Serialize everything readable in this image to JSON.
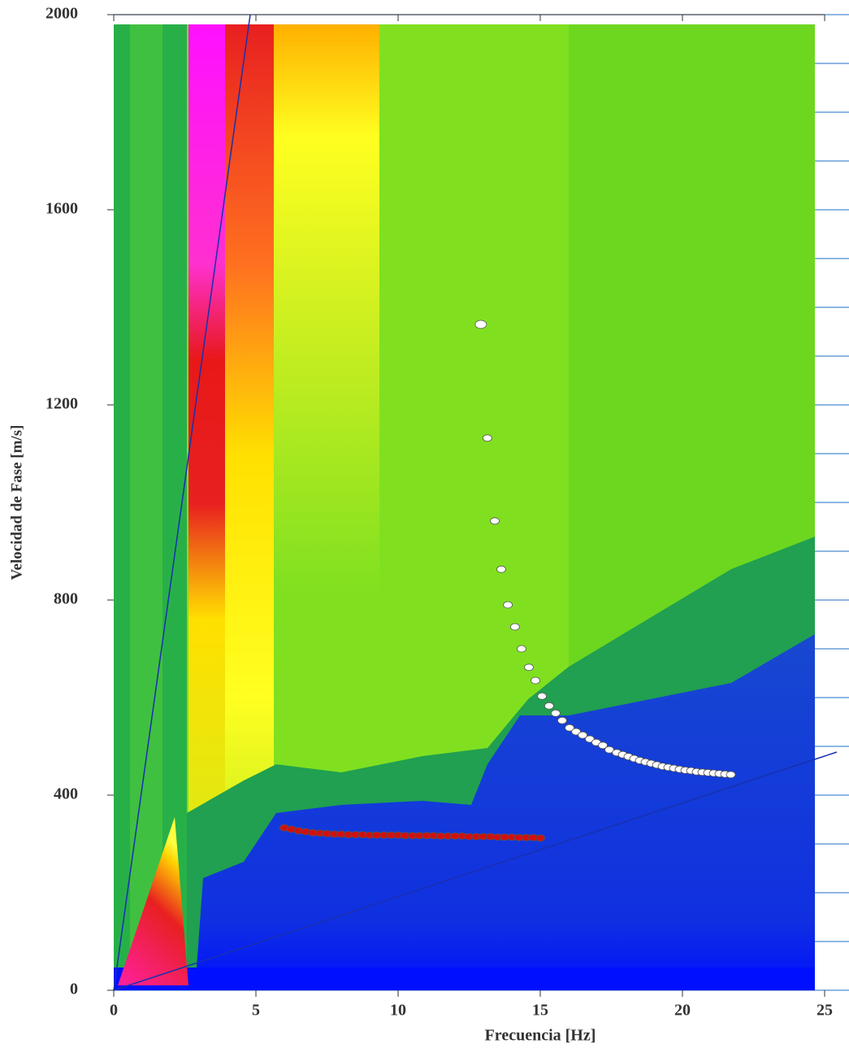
{
  "chart_data": {
    "type": "scatter",
    "x_label": "Frecuencia [Hz]",
    "y_label": "Velocidad de Fase [m/s]",
    "xlim": [
      0,
      25
    ],
    "ylim": [
      0,
      2000
    ],
    "xticks": [
      0,
      5,
      10,
      15,
      20,
      25
    ],
    "yticks": [
      0,
      400,
      800,
      1200,
      1600,
      2000
    ],
    "yminorticks": [
      100,
      200,
      300,
      500,
      600,
      700,
      900,
      1000,
      1100,
      1300,
      1400,
      1500,
      1700,
      1800,
      1900
    ],
    "grid": true,
    "series": [
      {
        "color": "#ffffff",
        "x": [
          12.91,
          13.14,
          13.4,
          13.63,
          13.86,
          14.11,
          14.34,
          14.6,
          14.83,
          15.06,
          15.31,
          15.54,
          15.77,
          16.03,
          16.26,
          16.49,
          16.74,
          16.97,
          17.2,
          17.43,
          17.69,
          17.9,
          18.1,
          18.3,
          18.5,
          18.7,
          18.9,
          19.1,
          19.3,
          19.5,
          19.7,
          19.9,
          20.1,
          20.3,
          20.5,
          20.7,
          20.9,
          21.1,
          21.3,
          21.5,
          21.7
        ],
        "values": [
          1365,
          1132,
          962,
          863,
          790,
          745,
          700,
          662,
          635,
          603,
          583,
          568,
          553,
          538,
          530,
          523,
          515,
          508,
          502,
          493,
          487,
          483,
          479,
          475,
          471,
          468,
          465,
          462,
          459,
          457,
          455,
          453,
          451,
          450,
          448,
          447,
          446,
          445,
          444,
          443,
          442
        ]
      },
      {
        "color": "#d01010",
        "x": [
          6,
          6.25,
          6.5,
          6.75,
          7,
          7.25,
          7.5,
          7.75,
          8,
          8.25,
          8.5,
          8.75,
          9,
          9.25,
          9.5,
          9.75,
          10,
          10.25,
          10.5,
          10.75,
          11,
          11.25,
          11.5,
          11.75,
          12,
          12.25,
          12.5,
          12.75,
          13,
          13.25,
          13.5,
          13.75,
          14,
          14.25,
          14.5,
          14.75,
          15
        ],
        "values": [
          333,
          330,
          327,
          325,
          323,
          322,
          321,
          320,
          320,
          319,
          319,
          319,
          318,
          318,
          318,
          318,
          318,
          317,
          317,
          317,
          317,
          317,
          316,
          316,
          316,
          316,
          315,
          315,
          315,
          315,
          314,
          314,
          314,
          313,
          313,
          313,
          312
        ]
      }
    ]
  }
}
